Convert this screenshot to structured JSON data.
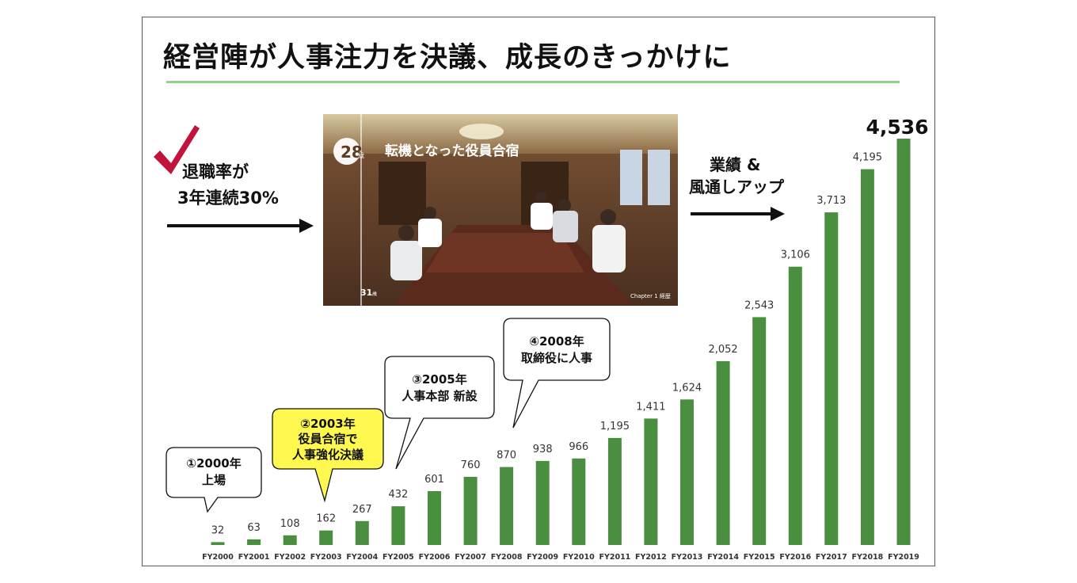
{
  "slide": {
    "title": "経営陣が人事注力を決議、成長のきっかけに"
  },
  "left_note": {
    "line1": "退職率が",
    "line2": "3年連続30%"
  },
  "right_note": {
    "line1": "業績 &",
    "line2": "風通しアップ"
  },
  "photo": {
    "badge": "28",
    "badge_suffix": "歳",
    "caption": "転機となった役員合宿",
    "side_number": "31",
    "side_suffix": "歳",
    "footer": "Chapter 1  経歴"
  },
  "callouts": [
    {
      "line1": "①2000年",
      "line2": "上場",
      "line3": ""
    },
    {
      "line1": "②2003年",
      "line2": "役員合宿で",
      "line3": "人事強化決議"
    },
    {
      "line1": "③2005年",
      "line2": "人事本部 新設",
      "line3": ""
    },
    {
      "line1": "④2008年",
      "line2": "取締役に人事",
      "line3": ""
    }
  ],
  "colors": {
    "bar": "#4a8e3f",
    "highlight_callout": "#fff94f",
    "check": "#c0143c",
    "rule": "#8fd48a"
  },
  "chart_data": {
    "type": "bar",
    "categories": [
      "FY2000",
      "FY2001",
      "FY2002",
      "FY2003",
      "FY2004",
      "FY2005",
      "FY2006",
      "FY2007",
      "FY2008",
      "FY2009",
      "FY2010",
      "FY2011",
      "FY2012",
      "FY2013",
      "FY2014",
      "FY2015",
      "FY2016",
      "FY2017",
      "FY2018",
      "FY2019"
    ],
    "values": [
      32,
      63,
      108,
      162,
      267,
      432,
      601,
      760,
      870,
      938,
      966,
      1195,
      1411,
      1624,
      2052,
      2543,
      3106,
      3713,
      4195,
      4536
    ],
    "value_labels": [
      "32",
      "63",
      "108",
      "162",
      "267",
      "432",
      "601",
      "760",
      "870",
      "938",
      "966",
      "1,195",
      "1,411",
      "1,624",
      "2,052",
      "2,543",
      "3,106",
      "3,713",
      "4,195",
      "4,536"
    ],
    "title": "",
    "xlabel": "",
    "ylabel": "",
    "ylim": [
      0,
      4536
    ],
    "grid": false,
    "legend": "none"
  }
}
